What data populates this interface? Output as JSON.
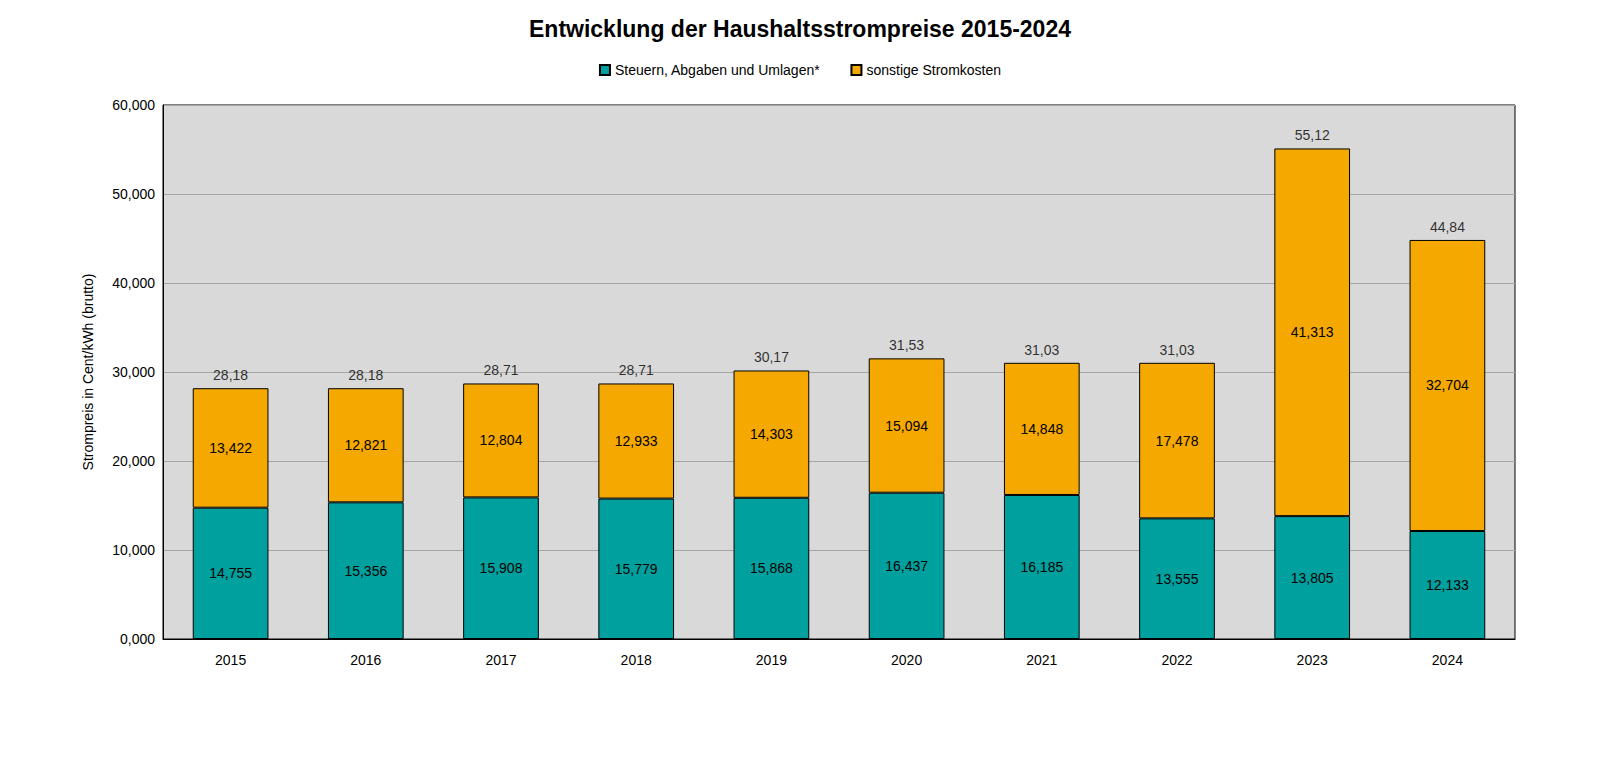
{
  "chart_data": {
    "type": "bar",
    "title": "Entwicklung der Haushaltsstrompreise 2015-2024",
    "y_label": "Strompreis in Cent/kWh (brutto)",
    "categories": [
      "2015",
      "2016",
      "2017",
      "2018",
      "2019",
      "2020",
      "2021",
      "2022",
      "2023",
      "2024"
    ],
    "series": [
      {
        "name": "Steuern, Abgaben und Umlagen*",
        "color": "#00A09E",
        "values": [
          14.755,
          15.356,
          15.908,
          15.779,
          15.868,
          16.437,
          16.185,
          13.555,
          13.805,
          12.133
        ],
        "value_labels": [
          "14,755",
          "15,356",
          "15,908",
          "15,779",
          "15,868",
          "16,437",
          "16,185",
          "13,555",
          "13,805",
          "12,133"
        ]
      },
      {
        "name": "sonstige Stromkosten",
        "color": "#F5A800",
        "values": [
          13.422,
          12.821,
          12.804,
          12.933,
          14.303,
          15.094,
          14.848,
          17.478,
          41.313,
          32.704
        ],
        "value_labels": [
          "13,422",
          "12,821",
          "12,804",
          "12,933",
          "14,303",
          "15,094",
          "14,848",
          "17,478",
          "41,313",
          "32,704"
        ]
      }
    ],
    "totals": [
      28.18,
      28.18,
      28.71,
      28.71,
      30.17,
      31.53,
      31.03,
      31.03,
      55.12,
      44.84
    ],
    "total_labels": [
      "28,18",
      "28,18",
      "28,71",
      "28,71",
      "30,17",
      "31,53",
      "31,03",
      "31,03",
      "55,12",
      "44,84"
    ],
    "ylim": [
      0,
      60
    ],
    "yticks": [
      {
        "value": 0,
        "label": "0,000"
      },
      {
        "value": 10,
        "label": "10,000"
      },
      {
        "value": 20,
        "label": "20,000"
      },
      {
        "value": 30,
        "label": "30,000"
      },
      {
        "value": 40,
        "label": "40,000"
      },
      {
        "value": 50,
        "label": "50,000"
      },
      {
        "value": 60,
        "label": "60,000"
      }
    ],
    "grid": true,
    "stacked": true,
    "data_labels": true,
    "legend": "top"
  }
}
